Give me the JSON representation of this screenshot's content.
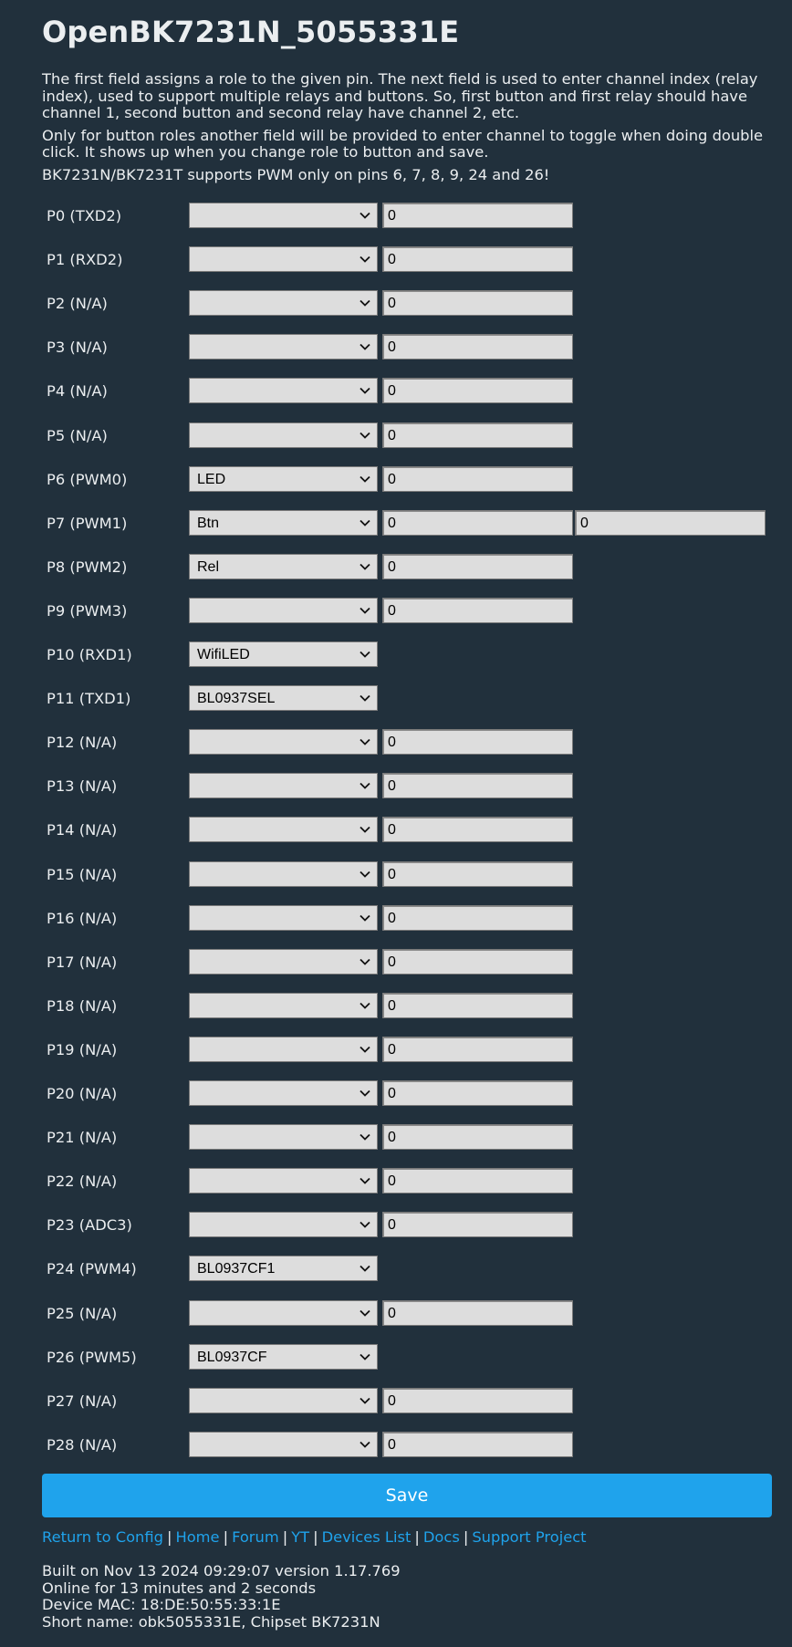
{
  "header": {
    "title": "OpenBK7231N_5055331E"
  },
  "intro": {
    "p1": "The first field assigns a role to the given pin. The next field is used to enter channel index (relay index), used to support multiple relays and buttons. So, first button and first relay should have channel 1, second button and second relay have channel 2, etc.",
    "p2": "Only for button roles another field will be provided to enter channel to toggle when doing double click. It shows up when you change role to button and save.",
    "p3": "BK7231N/BK7231T supports PWM only on pins 6, 7, 8, 9, 24 and 26!"
  },
  "pins": [
    {
      "label": "P0 (TXD2)",
      "role": "",
      "channel": "0"
    },
    {
      "label": "P1 (RXD2)",
      "role": "",
      "channel": "0"
    },
    {
      "label": "P2 (N/A)",
      "role": "",
      "channel": "0"
    },
    {
      "label": "P3 (N/A)",
      "role": "",
      "channel": "0"
    },
    {
      "label": "P4 (N/A)",
      "role": "",
      "channel": "0"
    },
    {
      "label": "P5 (N/A)",
      "role": "",
      "channel": "0"
    },
    {
      "label": "P6 (PWM0)",
      "role": "LED",
      "channel": "0"
    },
    {
      "label": "P7 (PWM1)",
      "role": "Btn",
      "channel": "0",
      "channel2": "0"
    },
    {
      "label": "P8 (PWM2)",
      "role": "Rel",
      "channel": "0"
    },
    {
      "label": "P9 (PWM3)",
      "role": "",
      "channel": "0"
    },
    {
      "label": "P10 (RXD1)",
      "role": "WifiLED"
    },
    {
      "label": "P11 (TXD1)",
      "role": "BL0937SEL"
    },
    {
      "label": "P12 (N/A)",
      "role": "",
      "channel": "0"
    },
    {
      "label": "P13 (N/A)",
      "role": "",
      "channel": "0"
    },
    {
      "label": "P14 (N/A)",
      "role": "",
      "channel": "0"
    },
    {
      "label": "P15 (N/A)",
      "role": "",
      "channel": "0"
    },
    {
      "label": "P16 (N/A)",
      "role": "",
      "channel": "0"
    },
    {
      "label": "P17 (N/A)",
      "role": "",
      "channel": "0"
    },
    {
      "label": "P18 (N/A)",
      "role": "",
      "channel": "0"
    },
    {
      "label": "P19 (N/A)",
      "role": "",
      "channel": "0"
    },
    {
      "label": "P20 (N/A)",
      "role": "",
      "channel": "0"
    },
    {
      "label": "P21 (N/A)",
      "role": "",
      "channel": "0"
    },
    {
      "label": "P22 (N/A)",
      "role": "",
      "channel": "0"
    },
    {
      "label": "P23 (ADC3)",
      "role": "",
      "channel": "0"
    },
    {
      "label": "P24 (PWM4)",
      "role": "BL0937CF1"
    },
    {
      "label": "P25 (N/A)",
      "role": "",
      "channel": "0"
    },
    {
      "label": "P26 (PWM5)",
      "role": "BL0937CF"
    },
    {
      "label": "P27 (N/A)",
      "role": "",
      "channel": "0"
    },
    {
      "label": "P28 (N/A)",
      "role": "",
      "channel": "0"
    }
  ],
  "save_label": "Save",
  "footer": {
    "links": [
      "Return to Config",
      "Home",
      "Forum",
      "YT",
      "Devices List",
      "Docs",
      "Support Project"
    ],
    "separator": "|",
    "built": "Built on Nov 13 2024 09:29:07 version 1.17.769",
    "online": "Online for 13 minutes and 2 seconds",
    "mac": "Device MAC: 18:DE:50:55:33:1E",
    "short": "Short name: obk5055331E, Chipset BK7231N"
  },
  "icons": {
    "dropdown": "chevron-down-icon"
  }
}
